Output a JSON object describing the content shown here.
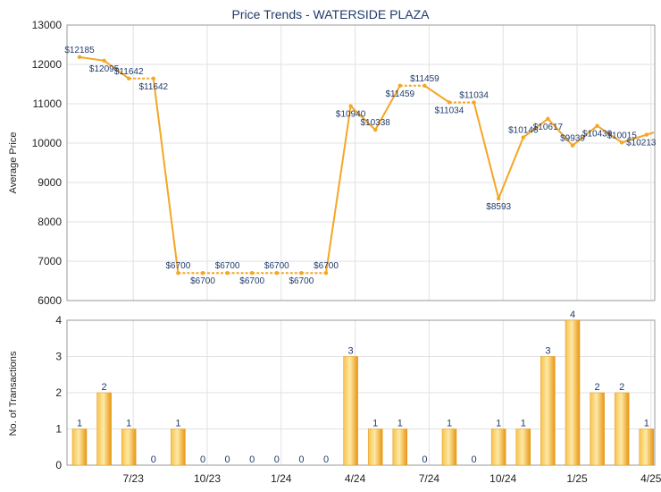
{
  "chart_data": [
    {
      "type": "line",
      "title": "Price Trends - WATERSIDE PLAZA",
      "ylabel": "Average Price",
      "ylim": [
        6000,
        13000
      ],
      "yticks": [
        6000,
        7000,
        8000,
        9000,
        10000,
        11000,
        12000,
        13000
      ],
      "xticks": [
        "7/23",
        "10/23",
        "1/24",
        "4/24",
        "7/24",
        "10/24",
        "1/25",
        "4/25"
      ],
      "color": "#f5a623",
      "values": [
        12185,
        12095,
        11642,
        11642,
        6700,
        6700,
        6700,
        6700,
        6700,
        6700,
        6700,
        10940,
        10338,
        11459,
        11459,
        11034,
        11034,
        8593,
        10146,
        10617,
        9939,
        10439,
        10015,
        10213
      ],
      "labels": [
        "$12185",
        "$12095",
        "$11642",
        "$11642",
        "$6700",
        "$6700",
        "$6700",
        "$6700",
        "$6700",
        "$6700",
        "$6700",
        "$10940",
        "$10338",
        "$11459",
        "$11459",
        "$11034",
        "$11034",
        "$8593",
        "$10146",
        "$10617",
        "$9939",
        "$10439",
        "$10015",
        "$10213"
      ]
    },
    {
      "type": "bar",
      "ylabel": "No. of Transactions",
      "ylim": [
        0,
        4
      ],
      "yticks": [
        0,
        1,
        2,
        3,
        4
      ],
      "xticks": [
        "7/23",
        "10/23",
        "1/24",
        "4/24",
        "7/24",
        "10/24",
        "1/25",
        "4/25"
      ],
      "color": "#f5a623",
      "values": [
        1,
        2,
        1,
        0,
        1,
        0,
        0,
        0,
        0,
        0,
        0,
        3,
        1,
        1,
        0,
        1,
        0,
        1,
        1,
        3,
        4,
        2,
        2,
        1
      ]
    }
  ]
}
